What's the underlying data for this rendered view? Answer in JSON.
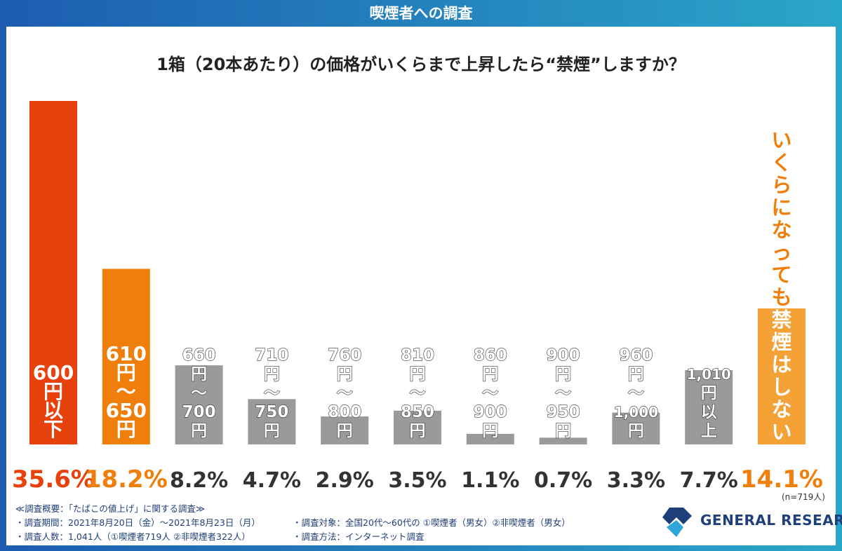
{
  "header": {
    "title": "喫煙者への調査"
  },
  "question": "1箱（20本あたり）の価格がいくらまで上昇したら“禁煙”しますか？",
  "chart_data": {
    "type": "bar",
    "categories": [
      "600円以下",
      "610円～650円",
      "660円～700円",
      "710円～750円",
      "760円～800円",
      "810円～850円",
      "860円～900円",
      "900円～950円",
      "960円～1,000円",
      "1,010円以上",
      "いくらになっても禁煙はしない"
    ],
    "category_lines": [
      [
        "600",
        "円",
        "以",
        "下"
      ],
      [
        "610",
        "円",
        "～",
        "650",
        "円"
      ],
      [
        "660",
        "円",
        "～",
        "700",
        "円"
      ],
      [
        "710",
        "円",
        "～",
        "750",
        "円"
      ],
      [
        "760",
        "円",
        "～",
        "800",
        "円"
      ],
      [
        "810",
        "円",
        "～",
        "850",
        "円"
      ],
      [
        "860",
        "円",
        "～",
        "900",
        "円"
      ],
      [
        "900",
        "円",
        "～",
        "950",
        "円"
      ],
      [
        "960",
        "円",
        "～",
        "1,000",
        "円"
      ],
      [
        "1,010",
        "円",
        "以",
        "上"
      ],
      [
        "い",
        "く",
        "ら",
        "に",
        "な",
        "っ",
        "て",
        "も",
        "禁",
        "煙",
        "は",
        "し",
        "な",
        "い"
      ]
    ],
    "values": [
      35.6,
      18.2,
      8.2,
      4.7,
      2.9,
      3.5,
      1.1,
      0.7,
      3.3,
      7.7,
      14.1
    ],
    "value_labels": [
      "35.6%",
      "18.2%",
      "8.2%",
      "4.7%",
      "2.9%",
      "3.5%",
      "1.1%",
      "0.7%",
      "3.3%",
      "7.7%",
      "14.1%"
    ],
    "bar_colors": [
      "#e8420c",
      "#f07e0a",
      "#9a9a9a",
      "#9a9a9a",
      "#9a9a9a",
      "#9a9a9a",
      "#9a9a9a",
      "#9a9a9a",
      "#9a9a9a",
      "#9a9a9a",
      "#f4a236"
    ],
    "label_colors": [
      "#e8420c",
      "#f07e0a",
      "#333333",
      "#333333",
      "#333333",
      "#333333",
      "#333333",
      "#333333",
      "#333333",
      "#333333",
      "#f07e0a"
    ],
    "ylim": [
      0,
      35.6
    ]
  },
  "sample_note": "(n=719人)",
  "notes": {
    "title": "≪調査概要：「たばこの値上げ」に関する調査≫",
    "period": "・調査期間：2021年8月20日（金）～2021年8月23日（月）",
    "count": "・調査人数：1,041人（①喫煙者719人 ②非喫煙者322人）",
    "target": "・調査対象：全国20代～60代の ①喫煙者（男女）②非喫煙者（男女）",
    "method": "・調査方法：インターネット調査"
  },
  "logo": {
    "text": "GENERAL RESEARCH"
  }
}
